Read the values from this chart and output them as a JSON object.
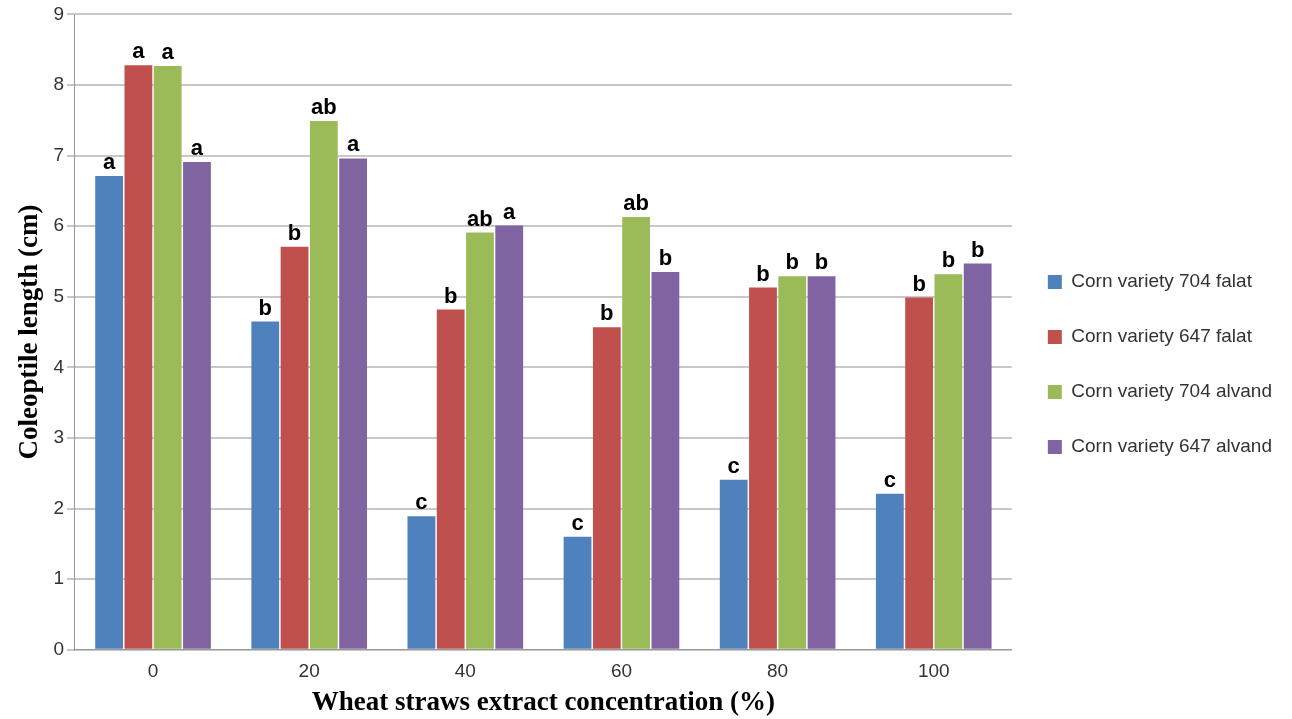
{
  "chart_data": {
    "type": "bar",
    "xlabel": "Wheat straws extract concentration (%)",
    "ylabel": "Coleoptile length (cm)",
    "categories": [
      "0",
      "20",
      "40",
      "60",
      "80",
      "100"
    ],
    "series": [
      {
        "name": "Corn variety 704 falat",
        "color": "#4f81bd",
        "values": [
          6.71,
          4.65,
          1.89,
          1.6,
          2.41,
          2.21
        ],
        "value_labels": [
          "a",
          "b",
          "c",
          "c",
          "c",
          "c"
        ]
      },
      {
        "name": "Corn variety 647 falat",
        "color": "#c0504d",
        "values": [
          8.28,
          5.71,
          4.82,
          4.57,
          5.13,
          4.99
        ],
        "value_labels": [
          "a",
          "b",
          "b",
          "b",
          "b",
          "b"
        ]
      },
      {
        "name": "Corn variety 704 alvand",
        "color": "#9bbb59",
        "values": [
          8.27,
          7.49,
          5.91,
          6.13,
          5.29,
          5.32
        ],
        "value_labels": [
          "a",
          "ab",
          "ab",
          "ab",
          "b",
          "b"
        ]
      },
      {
        "name": "Corn variety 647 alvand",
        "color": "#8064a2",
        "values": [
          6.91,
          6.96,
          6.01,
          5.35,
          5.29,
          5.47
        ],
        "value_labels": [
          "a",
          "a",
          "a",
          "b",
          "b",
          "b"
        ]
      }
    ],
    "ylim": [
      0,
      9
    ],
    "yticks": [
      0,
      1,
      2,
      3,
      4,
      5,
      6,
      7,
      8,
      9
    ],
    "grid": "y",
    "legend": "right"
  }
}
